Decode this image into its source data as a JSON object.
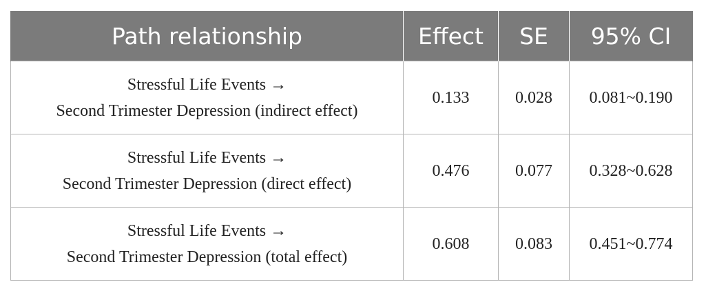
{
  "table": {
    "headers": [
      "Path relationship",
      "Effect",
      "SE",
      "95% CI"
    ],
    "rows": [
      {
        "path_line1": "Stressful Life Events →",
        "path_line2": "Second Trimester Depression (indirect effect)",
        "effect": "0.133",
        "se": "0.028",
        "ci": "0.081~0.190"
      },
      {
        "path_line1": "Stressful Life Events →",
        "path_line2": "Second Trimester Depression (direct effect)",
        "effect": "0.476",
        "se": "0.077",
        "ci": "0.328~0.628"
      },
      {
        "path_line1": "Stressful Life Events →",
        "path_line2": "Second Trimester Depression (total effect)",
        "effect": "0.608",
        "se": "0.083",
        "ci": "0.451~0.774"
      }
    ]
  },
  "colors": {
    "header_bg": "#7b7b7b",
    "header_text": "#ffffff",
    "border": "#b5b5b5"
  }
}
